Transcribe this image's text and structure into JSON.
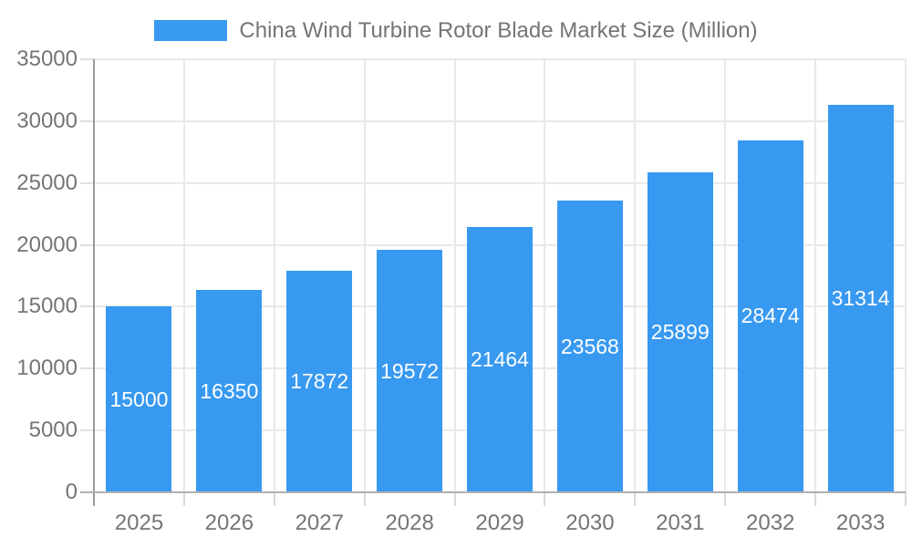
{
  "legend": {
    "label": "China Wind Turbine Rotor Blade Market Size (Million)"
  },
  "chart_data": {
    "type": "bar",
    "title": "China Wind Turbine Rotor Blade Market Size (Million)",
    "categories": [
      "2025",
      "2026",
      "2027",
      "2028",
      "2029",
      "2030",
      "2031",
      "2032",
      "2033"
    ],
    "series": [
      {
        "name": "China Wind Turbine Rotor Blade Market Size (Million)",
        "values": [
          15000,
          16350,
          17872,
          19572,
          21464,
          23568,
          25899,
          28474,
          31314
        ]
      }
    ],
    "values": [
      15000,
      16350,
      17872,
      19572,
      21464,
      23568,
      25899,
      28474,
      31314
    ],
    "data_labels": [
      15000,
      16350,
      17872,
      19572,
      21464,
      23568,
      25899,
      28474,
      31314
    ],
    "xlabel": "",
    "ylabel": "",
    "ylim": [
      0,
      35000
    ],
    "yticks": [
      0,
      5000,
      10000,
      15000,
      20000,
      25000,
      30000,
      35000
    ],
    "grid": true,
    "legend_position": "top-center",
    "colors": {
      "bar": "#3899f0",
      "data_label": "#ffffff",
      "axis_text": "#757575",
      "gridline": "#e9e9e9",
      "y_axis_line": "#999999",
      "x_axis_line": "#b0b0b0",
      "background": "#ffffff"
    }
  }
}
